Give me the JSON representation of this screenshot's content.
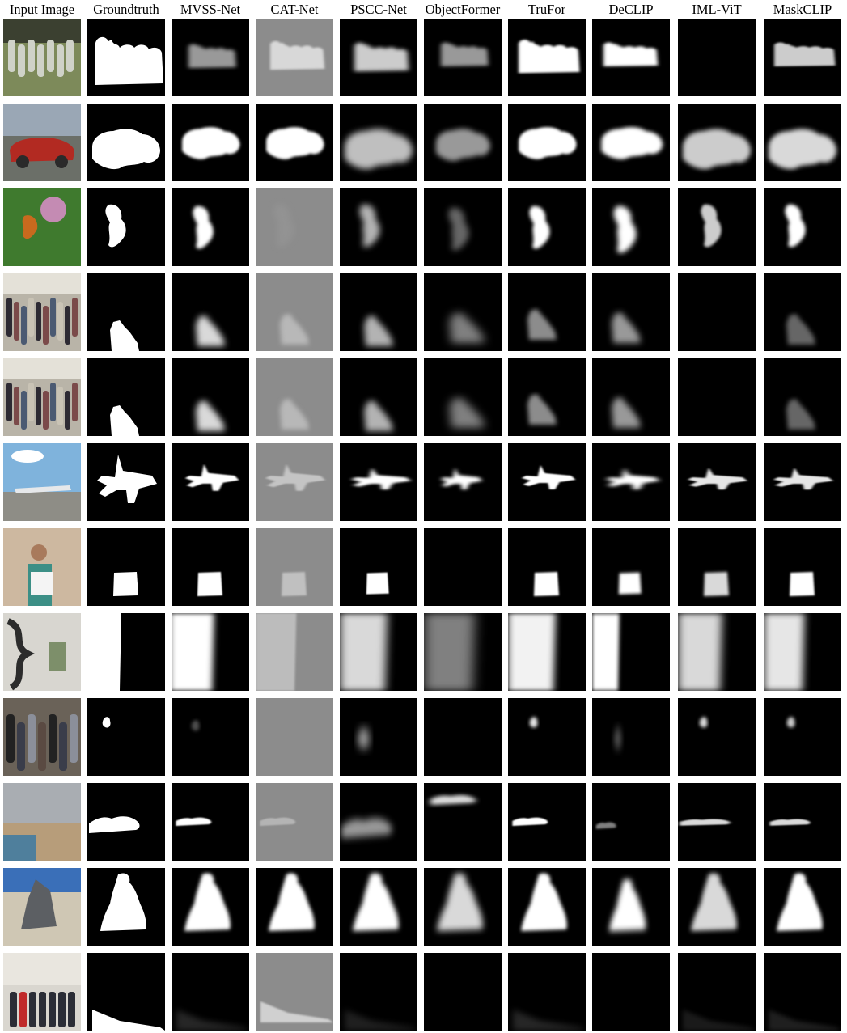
{
  "columns": [
    {
      "key": "input",
      "label": "Input Image"
    },
    {
      "key": "gt",
      "label": "Groundtruth"
    },
    {
      "key": "mvss",
      "label": "MVSS-Net"
    },
    {
      "key": "cat",
      "label": "CAT-Net"
    },
    {
      "key": "pscc",
      "label": "PSCC-Net"
    },
    {
      "key": "objectformer",
      "label": "ObjectFormer"
    },
    {
      "key": "trufor",
      "label": "TruFor"
    },
    {
      "key": "declip",
      "label": "DeCLIP"
    },
    {
      "key": "imlvit",
      "label": "IML-ViT"
    },
    {
      "key": "maskclip",
      "label": "MaskCLIP"
    }
  ],
  "rows": [
    {
      "id": "soldiers",
      "scene": "soldiers-on-field"
    },
    {
      "id": "red-car",
      "scene": "red-vintage-car"
    },
    {
      "id": "butterfly",
      "scene": "butterfly-on-flowers"
    },
    {
      "id": "crowd-hall-1",
      "scene": "crowded-hall"
    },
    {
      "id": "crowd-hall-2",
      "scene": "crowded-hall"
    },
    {
      "id": "airplane",
      "scene": "airplane-on-runway"
    },
    {
      "id": "women-certificate",
      "scene": "women-with-certificate"
    },
    {
      "id": "sculpture-room",
      "scene": "sculpture-in-room"
    },
    {
      "id": "group-meeting",
      "scene": "people-meeting"
    },
    {
      "id": "beach",
      "scene": "beach-with-crowd"
    },
    {
      "id": "monument",
      "scene": "monument-in-square"
    },
    {
      "id": "group-photo",
      "scene": "group-photo-in-hall"
    }
  ]
}
